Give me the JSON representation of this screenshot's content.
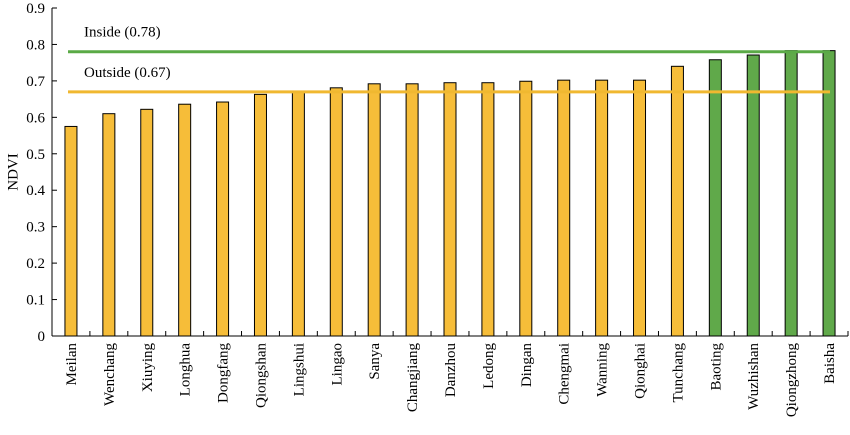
{
  "chart_data": {
    "type": "bar",
    "title": "",
    "xlabel": "",
    "ylabel": "NDVI",
    "ylim": [
      0,
      0.9
    ],
    "yticks": [
      "0",
      "0.1",
      "0.2",
      "0.3",
      "0.4",
      "0.5",
      "0.6",
      "0.7",
      "0.8",
      "0.9"
    ],
    "categories": [
      "Meilan",
      "Wenchang",
      "Xiuying",
      "Longhua",
      "Dongfang",
      "Qiongshan",
      "Lingshui",
      "Lingao",
      "Sanya",
      "Changjiang",
      "Danzhou",
      "Ledong",
      "Dingan",
      "Chengmai",
      "Wanning",
      "Qionghai",
      "Tunchang",
      "Baoting",
      "Wuzhishan",
      "Qiongzhong",
      "Baisha"
    ],
    "values": [
      0.575,
      0.61,
      0.622,
      0.636,
      0.642,
      0.663,
      0.672,
      0.681,
      0.692,
      0.692,
      0.695,
      0.695,
      0.699,
      0.702,
      0.702,
      0.702,
      0.74,
      0.758,
      0.771,
      0.783,
      0.783
    ],
    "groups": [
      "outside",
      "outside",
      "outside",
      "outside",
      "outside",
      "outside",
      "outside",
      "outside",
      "outside",
      "outside",
      "outside",
      "outside",
      "outside",
      "outside",
      "outside",
      "outside",
      "outside",
      "inside",
      "inside",
      "inside",
      "inside"
    ],
    "reference_lines": [
      {
        "label": "Inside (0.78)",
        "value": 0.78,
        "color": "#5aaa46"
      },
      {
        "label": "Outside (0.67)",
        "value": 0.67,
        "color": "#f0b830"
      }
    ],
    "colors": {
      "outside": "#f6bd39",
      "inside": "#60a94a",
      "outline": "#000000"
    },
    "grid": false,
    "legend": "none"
  }
}
